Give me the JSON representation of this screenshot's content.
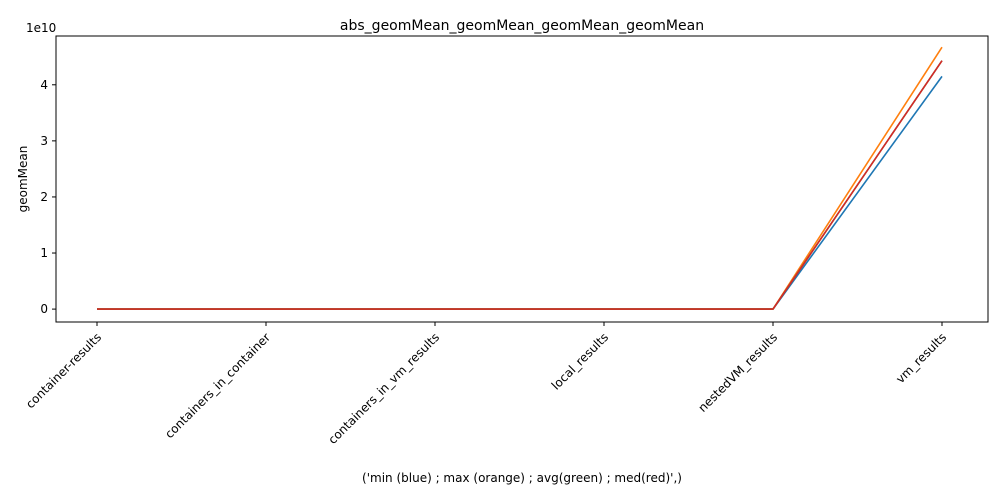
{
  "chart_data": {
    "type": "line",
    "title": "abs_geomMean_geomMean_geomMean_geomMean",
    "xlabel": "('min (blue) ; max (orange) ; avg(green) ; med(red)',)",
    "ylabel": "geomMean",
    "y_offset_label": "1e10",
    "y_scale_factor": 10000000000,
    "ylim": [
      -2.3,
      48.7
    ],
    "yticks": [
      0,
      1,
      2,
      3,
      4
    ],
    "categories": [
      "container-results",
      "containers_in_container",
      "containers_in_vm_results",
      "local_results",
      "nestedVM_results",
      "vm_results"
    ],
    "series": [
      {
        "color": "#1f77b4",
        "values": [
          0.0,
          0.0,
          0.0,
          0.0,
          0.0,
          4.15
        ]
      },
      {
        "color": "#ff7f0e",
        "values": [
          0.0,
          0.0,
          0.0,
          0.0,
          0.0,
          4.67
        ]
      },
      {
        "color": "#2ca02c",
        "values": [
          0.0,
          0.0,
          0.0,
          0.0,
          0.0,
          4.43
        ]
      },
      {
        "color": "#d62728",
        "values": [
          0.0,
          0.0,
          0.0,
          0.0,
          0.0,
          4.43
        ]
      }
    ],
    "grid": false,
    "legend": "none"
  }
}
